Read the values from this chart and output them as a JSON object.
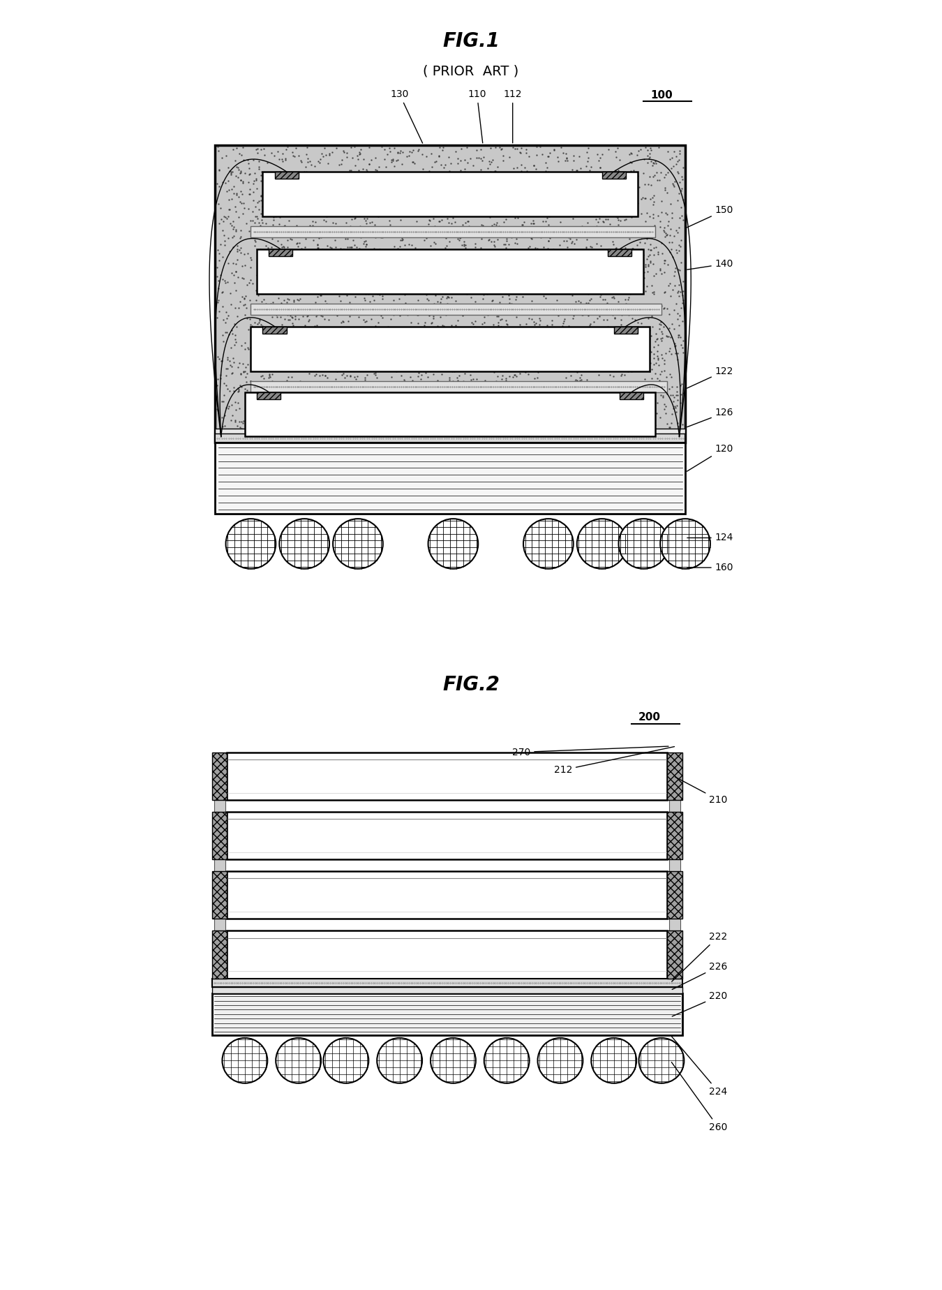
{
  "fig1_title": "FIG.1",
  "fig1_subtitle": "( PRIOR  ART )",
  "fig2_title": "FIG.2",
  "fig1_label": "100",
  "fig2_label": "200",
  "bg_color": "#ffffff"
}
